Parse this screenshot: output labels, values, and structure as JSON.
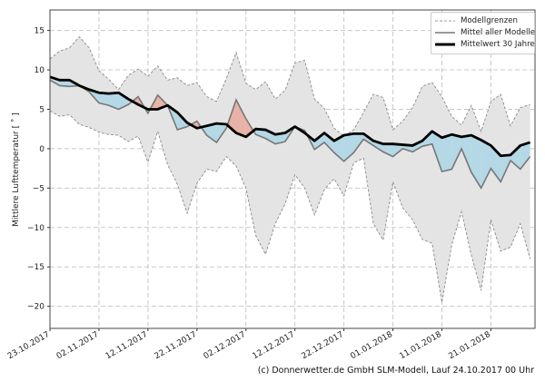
{
  "chart_data": {
    "type": "line",
    "title": "",
    "xlabel": "",
    "ylabel": "Mittlere Lufttemperatur [ ˚ ]",
    "ylim": [
      -22.8,
      17.6
    ],
    "xlim": [
      "23.10.2017",
      "30.01.2018"
    ],
    "grid": true,
    "legend_position": "top-right",
    "yticks": [
      15,
      10,
      5,
      0,
      -5,
      -10,
      -15,
      -20
    ],
    "xticks": [
      "23.10.2017",
      "02.11.2017",
      "12.11.2017",
      "22.11.2017",
      "02.12.2017",
      "12.12.2017",
      "22.12.2017",
      "01.01.2018",
      "11.01.2018",
      "21.01.2018"
    ],
    "dates": [
      "23.10.2017",
      "25.10.2017",
      "27.10.2017",
      "29.10.2017",
      "31.10.2017",
      "02.11.2017",
      "04.11.2017",
      "06.11.2017",
      "08.11.2017",
      "10.11.2017",
      "12.11.2017",
      "14.11.2017",
      "16.11.2017",
      "18.11.2017",
      "20.11.2017",
      "22.11.2017",
      "24.11.2017",
      "26.11.2017",
      "28.11.2017",
      "30.11.2017",
      "02.12.2017",
      "04.12.2017",
      "06.12.2017",
      "08.12.2017",
      "10.12.2017",
      "12.12.2017",
      "14.12.2017",
      "16.12.2017",
      "18.12.2017",
      "20.12.2017",
      "22.12.2017",
      "24.12.2017",
      "26.12.2017",
      "28.12.2017",
      "30.12.2017",
      "01.01.2018",
      "03.01.2018",
      "05.01.2018",
      "07.01.2018",
      "09.01.2018",
      "11.01.2018",
      "13.01.2018",
      "15.01.2018",
      "17.01.2018",
      "19.01.2018",
      "21.01.2018",
      "23.01.2018",
      "25.01.2018",
      "27.01.2018",
      "29.01.2018"
    ],
    "series": [
      {
        "name": "Modellgrenzen",
        "role": "upper",
        "values": [
          11.4,
          12.4,
          12.8,
          14.2,
          12.8,
          9.9,
          8.8,
          7.5,
          9.3,
          10.1,
          9.2,
          10.5,
          8.7,
          9.0,
          8.0,
          8.4,
          6.6,
          6.0,
          8.9,
          12.2,
          8.3,
          7.5,
          8.5,
          6.3,
          7.4,
          10.9,
          11.2,
          6.3,
          5.1,
          2.6,
          1.6,
          2.4,
          4.6,
          6.9,
          6.5,
          2.4,
          3.5,
          5.2,
          7.9,
          8.4,
          6.6,
          4.1,
          3.0,
          5.5,
          2.2,
          6.0,
          6.9,
          2.9,
          5.2,
          5.6
        ]
      },
      {
        "name": "Modellgrenzen",
        "role": "lower",
        "values": [
          4.8,
          4.1,
          4.3,
          3.1,
          2.7,
          2.1,
          1.8,
          1.7,
          0.9,
          1.6,
          -1.7,
          2.2,
          -2.0,
          -4.5,
          -8.2,
          -4.4,
          -2.6,
          -2.9,
          -1.0,
          -2.2,
          -5.0,
          -11.0,
          -13.4,
          -9.5,
          -7.0,
          -3.3,
          -5.0,
          -8.4,
          -5.2,
          -3.8,
          -6.0,
          -1.8,
          -1.2,
          -9.5,
          -11.6,
          -4.2,
          -7.5,
          -9.0,
          -11.5,
          -12.0,
          -19.5,
          -12.2,
          -8.0,
          -13.5,
          -18.0,
          -9.0,
          -13.0,
          -12.5,
          -9.5,
          -14.0
        ]
      },
      {
        "name": "Mittel aller Modelle",
        "role": "model_mean",
        "values": [
          8.7,
          8.0,
          7.9,
          8.0,
          7.2,
          5.8,
          5.5,
          5.0,
          5.6,
          6.6,
          4.5,
          6.8,
          5.5,
          2.4,
          2.8,
          3.5,
          1.7,
          0.8,
          2.6,
          6.2,
          3.8,
          1.8,
          1.3,
          0.6,
          0.9,
          2.8,
          2.3,
          -0.1,
          0.8,
          -0.5,
          -1.6,
          -0.5,
          1.2,
          0.4,
          -0.4,
          -1.0,
          0.0,
          -0.4,
          0.3,
          0.6,
          -2.9,
          -2.6,
          0.0,
          -3.0,
          -5.0,
          -2.5,
          -4.2,
          -1.5,
          -2.6,
          -1.0
        ]
      },
      {
        "name": "Mittelwert 30 Jahre",
        "role": "climate_mean",
        "values": [
          9.1,
          8.7,
          8.7,
          8.0,
          7.5,
          7.1,
          7.0,
          7.1,
          6.3,
          5.6,
          5.0,
          5.0,
          5.5,
          4.6,
          3.3,
          2.6,
          2.9,
          3.2,
          3.1,
          2.0,
          1.5,
          2.5,
          2.4,
          1.8,
          2.0,
          2.8,
          2.0,
          1.0,
          2.0,
          1.0,
          1.7,
          1.9,
          1.9,
          1.0,
          0.6,
          0.6,
          0.5,
          0.4,
          1.0,
          2.2,
          1.4,
          1.8,
          1.5,
          1.7,
          1.1,
          0.4,
          -0.9,
          -0.8,
          0.4,
          0.8
        ]
      }
    ],
    "colors": {
      "band": "#e4e4e4",
      "band_edge": "#8a8a8a",
      "model_mean": "#777777",
      "climate_mean": "#000000",
      "warmer": "#e8b2a6",
      "colder": "#b4d8e6",
      "grid": "#c8c8c8"
    }
  },
  "legend": {
    "items": [
      "Modellgrenzen",
      "Mittel aller Modelle",
      "Mittelwert 30 Jahre"
    ]
  },
  "footer": {
    "credit": "(c) Donnerwetter.de GmbH SLM-Modell, Lauf 24.10.2017 00 Uhr"
  }
}
